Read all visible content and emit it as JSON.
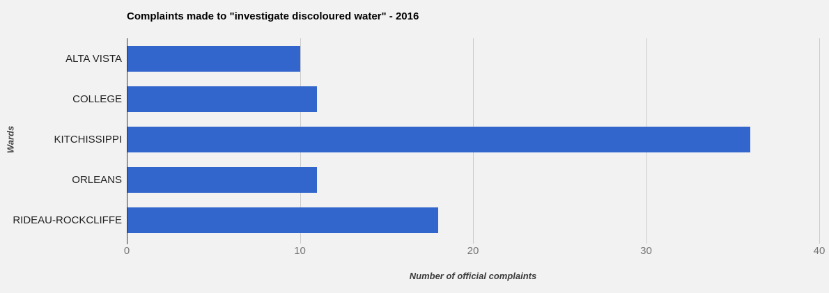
{
  "chart_data": {
    "type": "bar",
    "orientation": "horizontal",
    "title": "Complaints made to \"investigate discoloured water\" - 2016",
    "categories": [
      "ALTA VISTA",
      "COLLEGE",
      "KITCHISSIPPI",
      "ORLEANS",
      "RIDEAU-ROCKCLIFFE"
    ],
    "values": [
      10,
      11,
      36,
      11,
      18
    ],
    "xlabel": "Number of official complaints",
    "ylabel": "Wards",
    "xlim": [
      0,
      40
    ],
    "xticks": [
      0,
      10,
      20,
      30,
      40
    ],
    "grid": true,
    "legend": "none",
    "colors": {
      "bar": "#3366cc",
      "background": "#f2f2f2",
      "gridline": "#cccccc",
      "axis_line": "#333333",
      "tick_label": "#757575",
      "category_label": "#222222",
      "title": "#000000",
      "axis_title": "#3b3b3b"
    }
  }
}
